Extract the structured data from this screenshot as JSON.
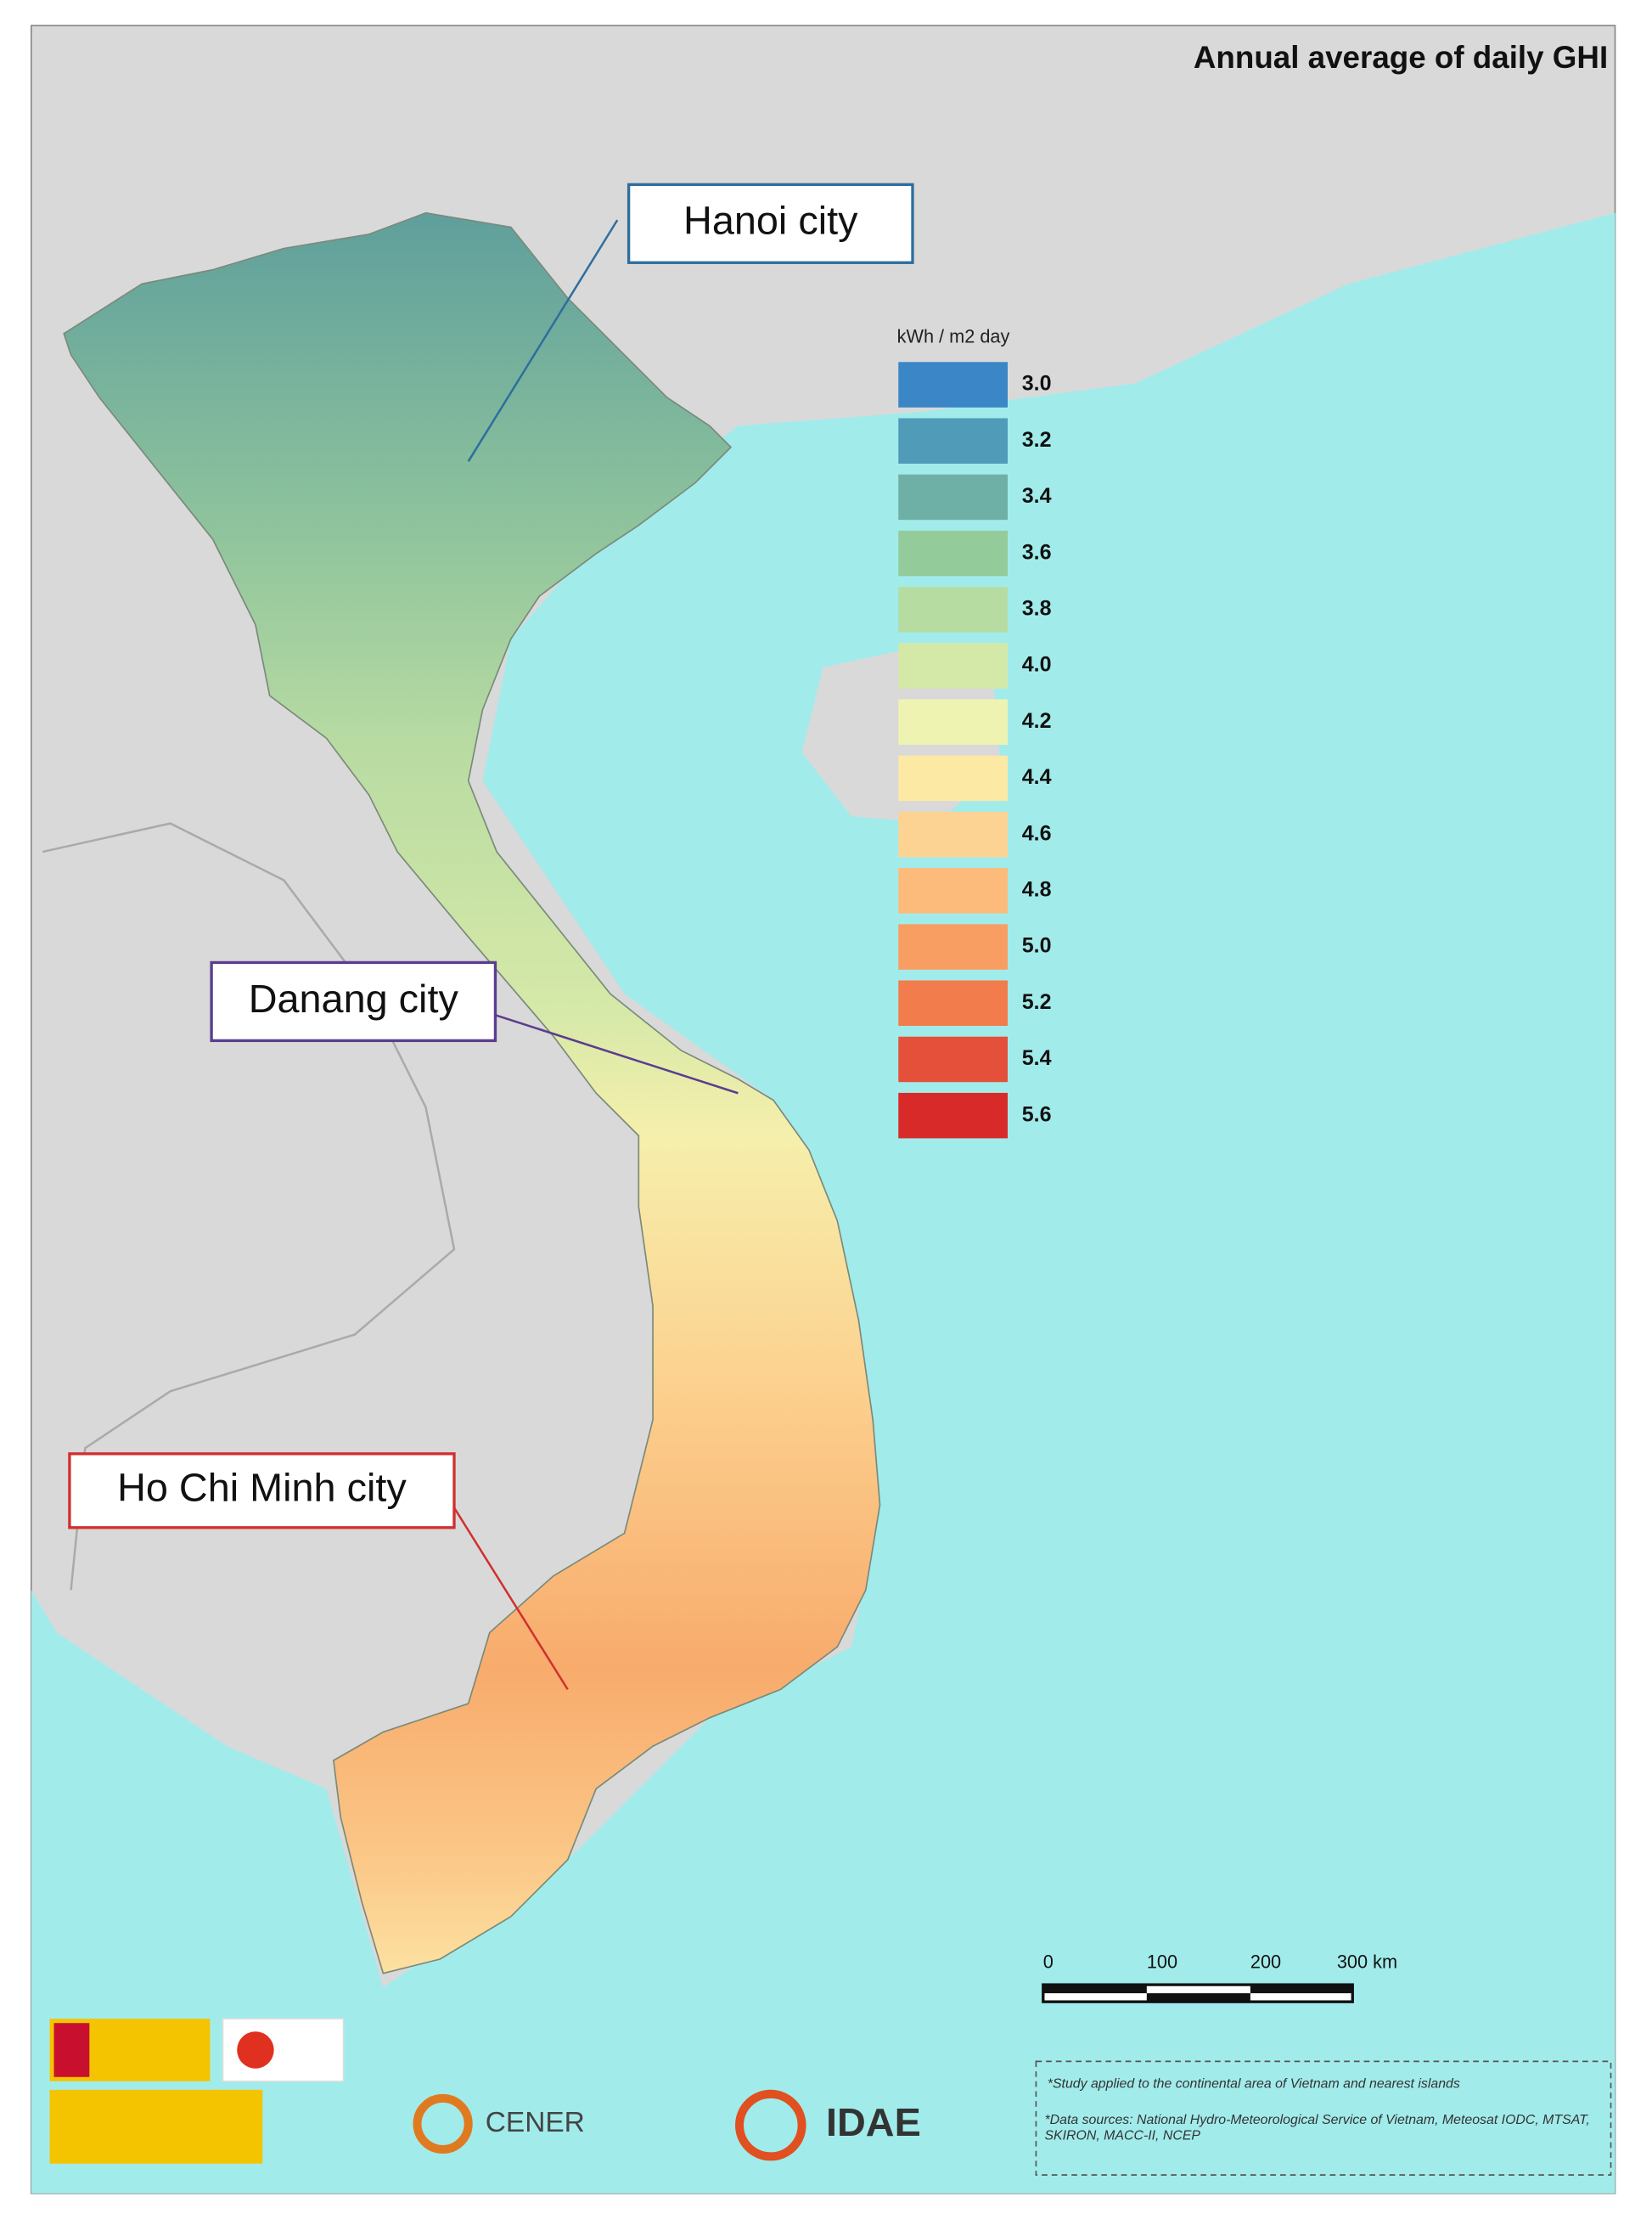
{
  "title": "Annual average of daily GHI",
  "legend": {
    "unit": "kWh / m2 day",
    "items": [
      {
        "label": "3.0",
        "color": "#3a86c6"
      },
      {
        "label": "3.2",
        "color": "#4f9bb8"
      },
      {
        "label": "3.4",
        "color": "#6fb0a6"
      },
      {
        "label": "3.6",
        "color": "#93cc9a"
      },
      {
        "label": "3.8",
        "color": "#b6dca2"
      },
      {
        "label": "4.0",
        "color": "#d4e9a8"
      },
      {
        "label": "4.2",
        "color": "#eef3b2"
      },
      {
        "label": "4.4",
        "color": "#fbe9a4"
      },
      {
        "label": "4.6",
        "color": "#fdd394"
      },
      {
        "label": "4.8",
        "color": "#fcbb7a"
      },
      {
        "label": "5.0",
        "color": "#f99e62"
      },
      {
        "label": "5.2",
        "color": "#f27c4c"
      },
      {
        "label": "5.4",
        "color": "#e5503a"
      },
      {
        "label": "5.6",
        "color": "#d92a2a"
      }
    ]
  },
  "callouts": [
    {
      "label": "Hanoi city",
      "color": "#2e6e9e"
    },
    {
      "label": "Danang city",
      "color": "#5b3d8f"
    },
    {
      "label": "Ho Chi Minh city",
      "color": "#d0302f"
    }
  ],
  "scale_bar": [
    "0",
    "100",
    "200",
    "300 km"
  ],
  "notes": [
    "*Study applied to the continental area of Vietnam and nearest islands",
    "*Data sources: National Hydro-Meteorological Service of Vietnam, Meteosat IODC, MTSAT, SKIRON, MACC-II, NCEP"
  ],
  "logos": [
    "CENER",
    "IDAE"
  ]
}
